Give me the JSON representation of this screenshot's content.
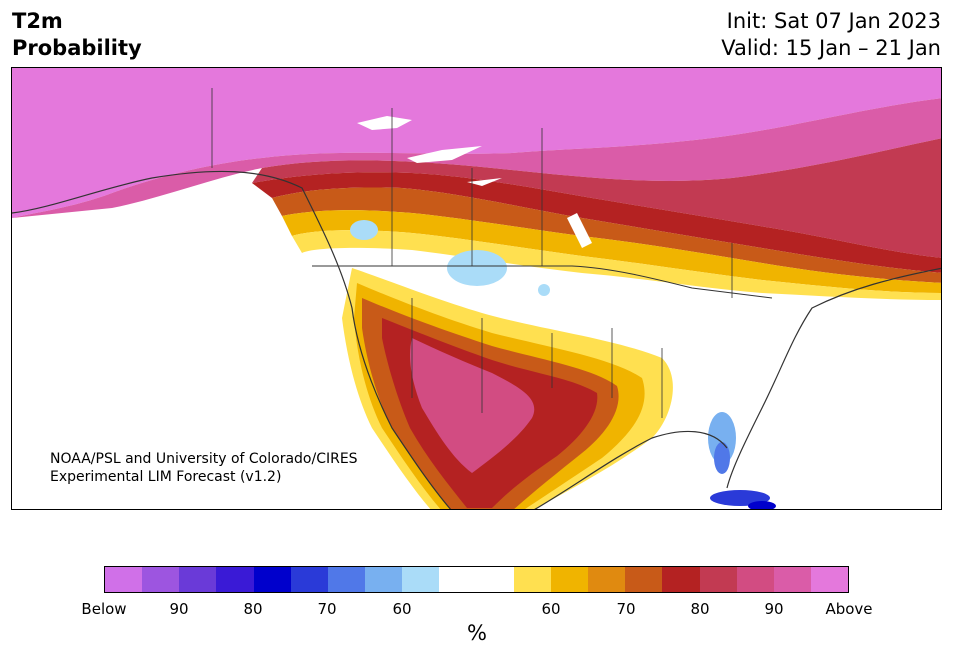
{
  "header": {
    "title_line1": "T2m",
    "title_line2": "Probability",
    "init": "Init: Sat 07 Jan 2023",
    "valid": "Valid: 15 Jan – 21 Jan"
  },
  "map": {
    "credit_line1": "NOAA/PSL and University of Colorado/CIRES",
    "credit_line2": "Experimental LIM Forecast (v1.2)",
    "region": "North America"
  },
  "colorbar": {
    "unit": "%",
    "colors": [
      "#d070e8",
      "#9d55e0",
      "#6a3ad8",
      "#3a1ad6",
      "#0000cc",
      "#2a3ad8",
      "#5078e8",
      "#78b0f0",
      "#aadcf8",
      "#ffffff",
      "#ffffff",
      "#ffe050",
      "#f0b400",
      "#e08a10",
      "#c85a18",
      "#b42222",
      "#c23a52",
      "#d24c82",
      "#da5ca8",
      "#e478dc"
    ],
    "tick_labels": [
      "Below",
      "90",
      "80",
      "70",
      "60",
      "60",
      "70",
      "80",
      "90",
      "Above"
    ]
  }
}
